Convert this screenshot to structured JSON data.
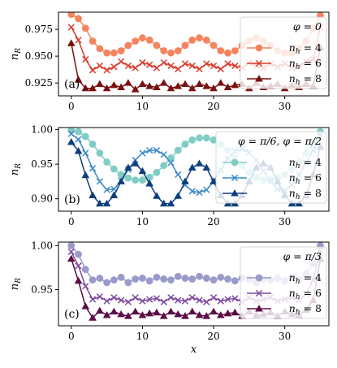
{
  "chart_data": [
    {
      "type": "line",
      "panel_label": "(a)",
      "ylabel": "n_R",
      "xlabel": "",
      "xlim": [
        -1.8,
        36.2
      ],
      "ylim": [
        0.913,
        0.991
      ],
      "xticks": [
        0,
        10,
        20,
        30
      ],
      "yticks": [
        0.925,
        0.95,
        0.975
      ],
      "ytick_labels": [
        "0.925",
        "0.950",
        "0.975"
      ],
      "grid": false,
      "legend": {
        "title": "φ = 0",
        "placement": "right",
        "entries": [
          "n_h = 4",
          "n_h = 6",
          "n_h = 8"
        ]
      },
      "series": [
        {
          "name": "n_h = 4",
          "color": "#f4845f",
          "marker": "circle",
          "x": [
            0,
            1,
            2,
            3,
            4,
            5,
            6,
            7,
            8,
            9,
            10,
            11,
            12,
            13,
            14,
            15,
            16,
            17,
            18,
            19,
            20,
            21,
            22,
            23,
            24,
            25,
            26,
            27,
            28,
            29,
            30,
            31,
            32,
            33,
            34,
            35
          ],
          "y": [
            0.989,
            0.985,
            0.976,
            0.964,
            0.957,
            0.953,
            0.953,
            0.955,
            0.96,
            0.964,
            0.967,
            0.965,
            0.96,
            0.955,
            0.953,
            0.955,
            0.96,
            0.965,
            0.967,
            0.965,
            0.96,
            0.955,
            0.953,
            0.955,
            0.96,
            0.964,
            0.967,
            0.964,
            0.96,
            0.955,
            0.953,
            0.953,
            0.957,
            0.964,
            0.976,
            0.988
          ]
        },
        {
          "name": "n_h = 6",
          "color": "#d93b2b",
          "marker": "x",
          "x": [
            0,
            1,
            2,
            3,
            4,
            5,
            6,
            7,
            8,
            9,
            10,
            11,
            12,
            13,
            14,
            15,
            16,
            17,
            18,
            19,
            20,
            21,
            22,
            23,
            24,
            25,
            26,
            27,
            28,
            29,
            30,
            31,
            32,
            33,
            34,
            35
          ],
          "y": [
            0.977,
            0.965,
            0.947,
            0.937,
            0.941,
            0.937,
            0.94,
            0.945,
            0.941,
            0.939,
            0.944,
            0.942,
            0.939,
            0.944,
            0.941,
            0.938,
            0.943,
            0.941,
            0.938,
            0.943,
            0.941,
            0.938,
            0.943,
            0.941,
            0.939,
            0.944,
            0.941,
            0.939,
            0.943,
            0.94,
            0.943,
            0.939,
            0.941,
            0.945,
            0.947,
            0.977
          ]
        },
        {
          "name": "n_h = 8",
          "color": "#7a1010",
          "marker": "triangle",
          "x": [
            0,
            1,
            2,
            3,
            4,
            5,
            6,
            7,
            8,
            9,
            10,
            11,
            12,
            13,
            14,
            15,
            16,
            17,
            18,
            19,
            20,
            21,
            22,
            23,
            24,
            25,
            26,
            27,
            28,
            29,
            30,
            31,
            32,
            33,
            34,
            35
          ],
          "y": [
            0.962,
            0.928,
            0.92,
            0.92,
            0.924,
            0.92,
            0.923,
            0.921,
            0.925,
            0.919,
            0.924,
            0.922,
            0.921,
            0.925,
            0.92,
            0.922,
            0.924,
            0.92,
            0.924,
            0.922,
            0.92,
            0.925,
            0.921,
            0.923,
            0.924,
            0.92,
            0.925,
            0.921,
            0.922,
            0.924,
            0.92,
            0.923,
            0.921,
            0.924,
            0.922,
            0.958
          ]
        }
      ]
    },
    {
      "type": "line",
      "panel_label": "(b)",
      "ylabel": "n_R",
      "xlabel": "",
      "xlim": [
        -1.8,
        36.2
      ],
      "ylim": [
        0.882,
        1.003
      ],
      "xticks": [
        0,
        10,
        20,
        30
      ],
      "yticks": [
        0.9,
        0.95,
        1.0
      ],
      "ytick_labels": [
        "0.90",
        "0.95",
        "1.00"
      ],
      "grid": false,
      "legend": {
        "title": "φ = π/6, φ = π/2",
        "placement": "right",
        "entries": [
          "n_h = 4",
          "n_h = 6",
          "n_h = 8"
        ]
      },
      "series": [
        {
          "name": "n_h = 4",
          "color": "#7fcdc4",
          "marker": "circle",
          "x": [
            0,
            1,
            2,
            3,
            4,
            5,
            6,
            7,
            8,
            9,
            10,
            11,
            12,
            13,
            14,
            15,
            16,
            17,
            18,
            19,
            20,
            21,
            22,
            23,
            24,
            25,
            26,
            27,
            28,
            29,
            30,
            31,
            32,
            33,
            34,
            35
          ],
          "y": [
            0.999,
            0.997,
            0.99,
            0.979,
            0.966,
            0.953,
            0.943,
            0.935,
            0.93,
            0.927,
            0.927,
            0.931,
            0.938,
            0.948,
            0.959,
            0.97,
            0.979,
            0.985,
            0.988,
            0.988,
            0.985,
            0.979,
            0.97,
            0.959,
            0.948,
            0.938,
            0.931,
            0.927,
            0.927,
            0.93,
            0.935,
            0.943,
            0.953,
            0.966,
            0.979,
            0.997
          ]
        },
        {
          "name": "n_h = 6",
          "color": "#3a8ac8",
          "marker": "x",
          "x": [
            0,
            1,
            2,
            3,
            4,
            5,
            6,
            7,
            8,
            9,
            10,
            11,
            12,
            13,
            14,
            15,
            16,
            17,
            18,
            19,
            20,
            21,
            22,
            23,
            24,
            25,
            26,
            27,
            28,
            29,
            30,
            31,
            32,
            33,
            34,
            35
          ],
          "y": [
            0.994,
            0.986,
            0.966,
            0.944,
            0.925,
            0.913,
            0.914,
            0.926,
            0.942,
            0.956,
            0.966,
            0.97,
            0.97,
            0.964,
            0.952,
            0.935,
            0.92,
            0.911,
            0.909,
            0.913,
            0.925,
            0.942,
            0.958,
            0.969,
            0.972,
            0.967,
            0.956,
            0.94,
            0.925,
            0.914,
            0.912,
            0.92,
            0.935,
            0.952,
            0.97,
            0.991
          ]
        },
        {
          "name": "n_h = 8",
          "color": "#0e3f7c",
          "marker": "triangle",
          "x": [
            0,
            1,
            2,
            3,
            4,
            5,
            6,
            7,
            8,
            9,
            10,
            11,
            12,
            13,
            14,
            15,
            16,
            17,
            18,
            19,
            20,
            21,
            22,
            23,
            24,
            25,
            26,
            27,
            28,
            29,
            30,
            31,
            32,
            33,
            34,
            35
          ],
          "y": [
            0.982,
            0.969,
            0.934,
            0.905,
            0.893,
            0.893,
            0.905,
            0.925,
            0.945,
            0.951,
            0.94,
            0.922,
            0.904,
            0.893,
            0.893,
            0.904,
            0.925,
            0.945,
            0.951,
            0.945,
            0.925,
            0.905,
            0.893,
            0.893,
            0.905,
            0.925,
            0.945,
            0.951,
            0.945,
            0.925,
            0.905,
            0.893,
            0.893,
            0.905,
            0.935,
            0.975
          ]
        }
      ]
    },
    {
      "type": "line",
      "panel_label": "(c)",
      "ylabel": "n_R",
      "xlabel": "x",
      "xlim": [
        -1.8,
        36.2
      ],
      "ylim": [
        0.909,
        1.004
      ],
      "xticks": [
        0,
        10,
        20,
        30
      ],
      "yticks": [
        0.95,
        1.0
      ],
      "ytick_labels": [
        "0.95",
        "1.00"
      ],
      "grid": false,
      "legend": {
        "title": "φ = π/3",
        "placement": "right",
        "entries": [
          "n_h = 4",
          "n_h = 6",
          "n_h = 8"
        ]
      },
      "series": [
        {
          "name": "n_h = 4",
          "color": "#9a9acb",
          "marker": "circle",
          "x": [
            0,
            1,
            2,
            3,
            4,
            5,
            6,
            7,
            8,
            9,
            10,
            11,
            12,
            13,
            14,
            15,
            16,
            17,
            18,
            19,
            20,
            21,
            22,
            23,
            24,
            25,
            26,
            27,
            28,
            29,
            30,
            31,
            32,
            33,
            34,
            35
          ],
          "y": [
            1.0,
            0.99,
            0.973,
            0.961,
            0.963,
            0.958,
            0.961,
            0.964,
            0.958,
            0.962,
            0.963,
            0.96,
            0.964,
            0.962,
            0.961,
            0.965,
            0.963,
            0.962,
            0.965,
            0.963,
            0.961,
            0.964,
            0.962,
            0.96,
            0.963,
            0.962,
            0.958,
            0.962,
            0.961,
            0.963,
            0.96,
            0.963,
            0.961,
            0.968,
            0.979,
            1.0
          ]
        },
        {
          "name": "n_h = 6",
          "color": "#7f4a9e",
          "marker": "x",
          "x": [
            0,
            1,
            2,
            3,
            4,
            5,
            6,
            7,
            8,
            9,
            10,
            11,
            12,
            13,
            14,
            15,
            16,
            17,
            18,
            19,
            20,
            21,
            22,
            23,
            24,
            25,
            26,
            27,
            28,
            29,
            30,
            31,
            32,
            33,
            34,
            35
          ],
          "y": [
            0.993,
            0.977,
            0.954,
            0.939,
            0.942,
            0.937,
            0.941,
            0.938,
            0.936,
            0.941,
            0.937,
            0.939,
            0.94,
            0.936,
            0.941,
            0.938,
            0.937,
            0.941,
            0.938,
            0.936,
            0.941,
            0.937,
            0.939,
            0.94,
            0.936,
            0.941,
            0.937,
            0.939,
            0.941,
            0.937,
            0.939,
            0.941,
            0.938,
            0.945,
            0.961,
            0.994
          ]
        },
        {
          "name": "n_h = 8",
          "color": "#5b0c47",
          "marker": "triangle",
          "x": [
            0,
            1,
            2,
            3,
            4,
            5,
            6,
            7,
            8,
            9,
            10,
            11,
            12,
            13,
            14,
            15,
            16,
            17,
            18,
            19,
            20,
            21,
            22,
            23,
            24,
            25,
            26,
            27,
            28,
            29,
            30,
            31,
            32,
            33,
            34,
            35
          ],
          "y": [
            0.985,
            0.96,
            0.931,
            0.918,
            0.926,
            0.921,
            0.925,
            0.922,
            0.92,
            0.925,
            0.921,
            0.923,
            0.924,
            0.92,
            0.925,
            0.922,
            0.92,
            0.925,
            0.921,
            0.92,
            0.925,
            0.921,
            0.923,
            0.924,
            0.92,
            0.925,
            0.921,
            0.922,
            0.924,
            0.92,
            0.925,
            0.922,
            0.921,
            0.927,
            0.938,
            0.985
          ]
        }
      ]
    }
  ]
}
